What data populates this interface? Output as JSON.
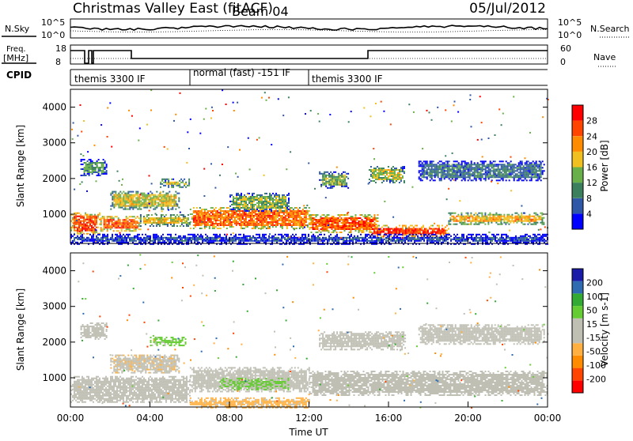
{
  "header": {
    "title": "Christmas Valley East (fitACF)",
    "beam": "Beam 04",
    "date": "05/Jul/2012"
  },
  "top_panels": {
    "nsky_label": "N.Sky",
    "nsearch_label": "N.Search",
    "noise_ticks_left": [
      "10^5",
      "10^0"
    ],
    "noise_ticks_right": [
      "10^5",
      "10^0"
    ],
    "freq_label_1": "Freq.",
    "freq_label_2": "[MHz]",
    "freq_ticks": [
      "18",
      "8"
    ],
    "nave_label": "Nave",
    "nave_ticks": [
      "60",
      "0"
    ],
    "cpid_label": "CPID",
    "cpid_segments": [
      "themis 3300 IF",
      "normal (fast) -151 IF",
      "themis 3300 IF"
    ]
  },
  "colors": {
    "power_scale": [
      "#0000ff",
      "#2e57a8",
      "#3a7f5e",
      "#6ab04a",
      "#f0c020",
      "#ff8c00",
      "#ff4500",
      "#ff0000"
    ],
    "velocity_scale": [
      "#ff0000",
      "#ff4500",
      "#ff8c00",
      "#ffb040",
      "#bfbfb3",
      "#bfbfb3",
      "#66cc33",
      "#33aa33",
      "#2e6bb0",
      "#1a1aa8"
    ],
    "ground_scatter": "#bfbfb3"
  },
  "chart_data": [
    {
      "type": "heatmap",
      "name": "power",
      "ylabel": "Slant Range [km]",
      "yticks": [
        "1000",
        "2000",
        "3000",
        "4000"
      ],
      "ylim": [
        180,
        4500
      ],
      "colorbar_label": "Power [dB]",
      "colorbar_ticks": [
        "4",
        "8",
        "12",
        "16",
        "20",
        "24",
        "28"
      ],
      "colorbar_range": [
        0,
        32
      ],
      "xticks": [
        "00:00",
        "04:00",
        "08:00",
        "12:00",
        "16:00",
        "20:00",
        "00:00"
      ],
      "xlim_hours": [
        0,
        24
      ],
      "bands": [
        {
          "t": [
            0.0,
            1.5
          ],
          "r": [
            450,
            1050
          ],
          "p": 26
        },
        {
          "t": [
            1.5,
            3.5
          ],
          "r": [
            550,
            950
          ],
          "p": 25
        },
        {
          "t": [
            3.5,
            6.0
          ],
          "r": [
            650,
            1000
          ],
          "p": 18
        },
        {
          "t": [
            2.0,
            5.5
          ],
          "r": [
            1150,
            1650
          ],
          "p": 17
        },
        {
          "t": [
            4.5,
            6.0
          ],
          "r": [
            1750,
            2000
          ],
          "p": 16
        },
        {
          "t": [
            0.5,
            1.8
          ],
          "r": [
            2100,
            2550
          ],
          "p": 11
        },
        {
          "t": [
            6.0,
            12.0
          ],
          "r": [
            600,
            1200
          ],
          "p": 24
        },
        {
          "t": [
            8.0,
            11.0
          ],
          "r": [
            1100,
            1600
          ],
          "p": 14
        },
        {
          "t": [
            12.0,
            15.5
          ],
          "r": [
            500,
            1000
          ],
          "p": 25
        },
        {
          "t": [
            15.0,
            19.0
          ],
          "r": [
            350,
            700
          ],
          "p": 28
        },
        {
          "t": [
            19.0,
            23.8
          ],
          "r": [
            700,
            1050
          ],
          "p": 20
        },
        {
          "t": [
            12.5,
            14.0
          ],
          "r": [
            1750,
            2200
          ],
          "p": 13
        },
        {
          "t": [
            15.0,
            16.8
          ],
          "r": [
            1900,
            2350
          ],
          "p": 16
        },
        {
          "t": [
            17.5,
            23.8
          ],
          "r": [
            1950,
            2500
          ],
          "p": 8
        },
        {
          "t": [
            0.0,
            24.0
          ],
          "r": [
            180,
            450
          ],
          "p": 5
        }
      ]
    },
    {
      "type": "heatmap",
      "name": "velocity",
      "ylabel": "Slant Range [km]",
      "yticks": [
        "1000",
        "2000",
        "3000",
        "4000"
      ],
      "ylim": [
        180,
        4500
      ],
      "colorbar_label": "Velocity [m s-1]",
      "colorbar_ticks": [
        "200",
        "100",
        "50",
        "15",
        "-15",
        "-50",
        "-100",
        "-200"
      ],
      "colorbar_range": [
        -250,
        250
      ],
      "xticks": [
        "00:00",
        "04:00",
        "08:00",
        "12:00",
        "16:00",
        "20:00",
        "00:00"
      ],
      "xlabel": "Time UT",
      "xlim_hours": [
        0,
        24
      ],
      "bands": [
        {
          "t": [
            0.0,
            6.0
          ],
          "r": [
            300,
            1050
          ],
          "v": 0
        },
        {
          "t": [
            2.0,
            5.5
          ],
          "r": [
            1150,
            1650
          ],
          "v": -40
        },
        {
          "t": [
            4.0,
            5.8
          ],
          "r": [
            1900,
            2150
          ],
          "v": 60
        },
        {
          "t": [
            0.5,
            1.8
          ],
          "r": [
            2100,
            2550
          ],
          "v": 0
        },
        {
          "t": [
            6.0,
            12.0
          ],
          "r": [
            600,
            1300
          ],
          "v": 0
        },
        {
          "t": [
            7.5,
            11.0
          ],
          "r": [
            650,
            1000
          ],
          "v": 55
        },
        {
          "t": [
            6.0,
            12.0
          ],
          "r": [
            180,
            450
          ],
          "v": -60
        },
        {
          "t": [
            12.0,
            24.0
          ],
          "r": [
            500,
            1200
          ],
          "v": 0
        },
        {
          "t": [
            12.5,
            16.8
          ],
          "r": [
            1800,
            2300
          ],
          "v": 0
        },
        {
          "t": [
            17.5,
            23.8
          ],
          "r": [
            1950,
            2500
          ],
          "v": 0
        }
      ]
    }
  ]
}
